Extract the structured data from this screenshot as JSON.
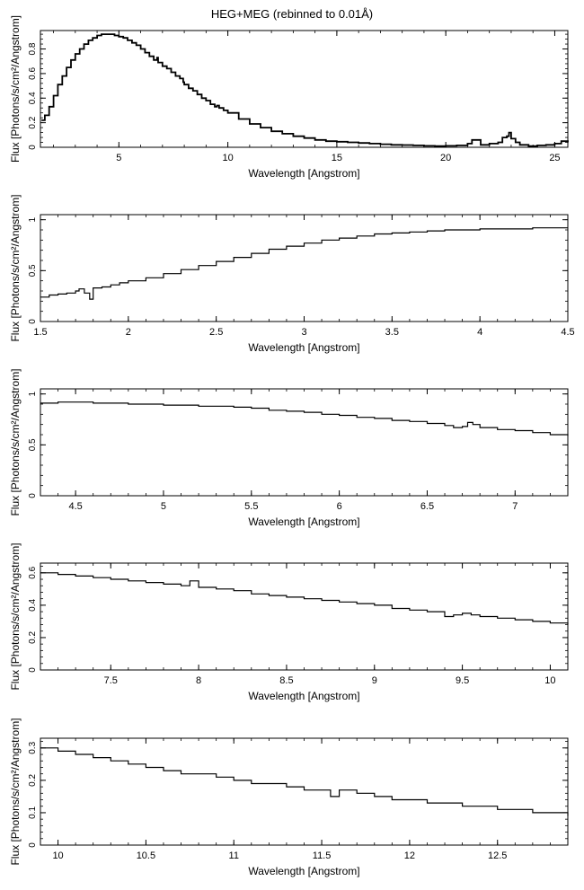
{
  "figure_title": "HEG+MEG (rebinned to 0.01Å)",
  "chart_data": [
    {
      "type": "line",
      "xlabel": "Wavelength [Angstrom]",
      "ylabel": "Flux [Photons/s/cm²/Angstrom]",
      "xlim": [
        1.4,
        25.6
      ],
      "ylim": [
        0,
        0.95
      ],
      "xticks": [
        5,
        10,
        15,
        20,
        25
      ],
      "yticks": [
        0,
        0.2,
        0.4,
        0.6,
        0.8
      ],
      "ytick_labels": [
        "0",
        "0.2",
        "0.4",
        "0.6",
        "0.8"
      ],
      "series": [
        {
          "x": [
            1.45,
            1.6,
            1.8,
            2.0,
            2.2,
            2.4,
            2.6,
            2.8,
            3.0,
            3.2,
            3.4,
            3.6,
            3.8,
            4.0,
            4.2,
            4.4,
            4.6,
            4.8,
            5.0,
            5.2,
            5.4,
            5.6,
            5.8,
            6.0,
            6.2,
            6.4,
            6.6,
            6.7,
            6.75,
            6.8,
            7.0,
            7.2,
            7.4,
            7.6,
            7.8,
            7.95,
            8.0,
            8.2,
            8.4,
            8.6,
            8.8,
            9.0,
            9.2,
            9.4,
            9.5,
            9.6,
            9.8,
            10.0,
            10.5,
            11.0,
            11.5,
            12.0,
            12.5,
            13.0,
            13.5,
            14.0,
            14.5,
            15.0,
            15.5,
            16.0,
            16.5,
            17.0,
            17.5,
            18.0,
            18.5,
            19.0,
            19.5,
            20.0,
            20.5,
            21.0,
            21.2,
            21.6,
            22.0,
            22.4,
            22.6,
            22.8,
            22.9,
            23.0,
            23.2,
            23.4,
            23.8,
            24.2,
            24.6,
            25.0,
            25.3,
            25.6
          ],
          "y": [
            0.22,
            0.26,
            0.33,
            0.42,
            0.51,
            0.58,
            0.65,
            0.71,
            0.76,
            0.8,
            0.84,
            0.87,
            0.89,
            0.91,
            0.92,
            0.92,
            0.92,
            0.91,
            0.9,
            0.89,
            0.87,
            0.85,
            0.83,
            0.8,
            0.77,
            0.74,
            0.71,
            0.71,
            0.73,
            0.69,
            0.66,
            0.64,
            0.61,
            0.58,
            0.56,
            0.53,
            0.51,
            0.48,
            0.46,
            0.43,
            0.4,
            0.38,
            0.35,
            0.33,
            0.34,
            0.32,
            0.3,
            0.28,
            0.23,
            0.19,
            0.16,
            0.13,
            0.11,
            0.09,
            0.075,
            0.06,
            0.05,
            0.045,
            0.04,
            0.035,
            0.03,
            0.025,
            0.02,
            0.018,
            0.015,
            0.012,
            0.01,
            0.012,
            0.015,
            0.03,
            0.06,
            0.02,
            0.03,
            0.04,
            0.08,
            0.09,
            0.12,
            0.07,
            0.04,
            0.02,
            0.01,
            0.015,
            0.02,
            0.03,
            0.05,
            0.04
          ]
        }
      ]
    },
    {
      "type": "line",
      "xlabel": "Wavelength [Angstrom]",
      "ylabel": "Flux [Photons/s/cm²/Angstrom]",
      "xlim": [
        1.5,
        4.5
      ],
      "ylim": [
        0,
        1.05
      ],
      "xticks": [
        1.5,
        2,
        2.5,
        3,
        3.5,
        4,
        4.5
      ],
      "xtick_labels": [
        "1.5",
        "2",
        "2.5",
        "3",
        "3.5",
        "4",
        "4.5"
      ],
      "yticks": [
        0,
        0.5,
        1
      ],
      "ytick_labels": [
        "0",
        "0.5",
        "1"
      ],
      "series": [
        {
          "x": [
            1.5,
            1.55,
            1.6,
            1.65,
            1.7,
            1.72,
            1.75,
            1.78,
            1.8,
            1.85,
            1.9,
            1.95,
            2.0,
            2.1,
            2.2,
            2.3,
            2.4,
            2.5,
            2.6,
            2.7,
            2.8,
            2.9,
            3.0,
            3.1,
            3.2,
            3.3,
            3.4,
            3.5,
            3.6,
            3.7,
            3.8,
            3.9,
            4.0,
            4.1,
            4.2,
            4.3,
            4.4,
            4.5
          ],
          "y": [
            0.24,
            0.26,
            0.27,
            0.28,
            0.3,
            0.32,
            0.28,
            0.22,
            0.33,
            0.34,
            0.36,
            0.38,
            0.4,
            0.43,
            0.47,
            0.51,
            0.55,
            0.59,
            0.63,
            0.67,
            0.71,
            0.74,
            0.77,
            0.8,
            0.82,
            0.84,
            0.86,
            0.87,
            0.88,
            0.89,
            0.9,
            0.9,
            0.91,
            0.91,
            0.91,
            0.92,
            0.92,
            0.92
          ]
        }
      ]
    },
    {
      "type": "line",
      "xlabel": "Wavelength [Angstrom]",
      "ylabel": "Flux [Photons/s/cm²/Angstrom]",
      "xlim": [
        4.3,
        7.3
      ],
      "ylim": [
        0,
        1.05
      ],
      "xticks": [
        4.5,
        5,
        5.5,
        6,
        6.5,
        7
      ],
      "xtick_labels": [
        "4.5",
        "5",
        "5.5",
        "6",
        "6.5",
        "7"
      ],
      "yticks": [
        0,
        0.5,
        1
      ],
      "ytick_labels": [
        "0",
        "0.5",
        "1"
      ],
      "series": [
        {
          "x": [
            4.3,
            4.4,
            4.5,
            4.6,
            4.7,
            4.8,
            4.9,
            5.0,
            5.1,
            5.2,
            5.3,
            5.4,
            5.5,
            5.6,
            5.7,
            5.8,
            5.9,
            6.0,
            6.1,
            6.2,
            6.3,
            6.4,
            6.5,
            6.6,
            6.65,
            6.7,
            6.73,
            6.76,
            6.8,
            6.9,
            7.0,
            7.1,
            7.2,
            7.3
          ],
          "y": [
            0.91,
            0.92,
            0.92,
            0.91,
            0.91,
            0.9,
            0.9,
            0.89,
            0.89,
            0.88,
            0.88,
            0.87,
            0.86,
            0.84,
            0.83,
            0.82,
            0.8,
            0.79,
            0.77,
            0.76,
            0.74,
            0.73,
            0.71,
            0.69,
            0.67,
            0.68,
            0.72,
            0.7,
            0.67,
            0.65,
            0.64,
            0.62,
            0.6,
            0.59
          ]
        }
      ]
    },
    {
      "type": "line",
      "xlabel": "Wavelength [Angstrom]",
      "ylabel": "Flux [Photons/s/cm²/Angstrom]",
      "xlim": [
        7.1,
        10.1
      ],
      "ylim": [
        0,
        0.66
      ],
      "xticks": [
        7.5,
        8,
        8.5,
        9,
        9.5,
        10
      ],
      "xtick_labels": [
        "7.5",
        "8",
        "8.5",
        "9",
        "9.5",
        "10"
      ],
      "yticks": [
        0,
        0.2,
        0.4,
        0.6
      ],
      "ytick_labels": [
        "0",
        "0.2",
        "0.4",
        "0.6"
      ],
      "series": [
        {
          "x": [
            7.1,
            7.2,
            7.3,
            7.4,
            7.5,
            7.6,
            7.7,
            7.8,
            7.9,
            7.95,
            8.0,
            8.1,
            8.2,
            8.3,
            8.4,
            8.5,
            8.6,
            8.7,
            8.8,
            8.9,
            9.0,
            9.1,
            9.2,
            9.3,
            9.4,
            9.45,
            9.5,
            9.55,
            9.6,
            9.7,
            9.8,
            9.9,
            10.0,
            10.1
          ],
          "y": [
            0.6,
            0.59,
            0.58,
            0.57,
            0.56,
            0.55,
            0.54,
            0.53,
            0.52,
            0.55,
            0.51,
            0.5,
            0.49,
            0.47,
            0.46,
            0.45,
            0.44,
            0.43,
            0.42,
            0.41,
            0.4,
            0.38,
            0.37,
            0.36,
            0.33,
            0.34,
            0.35,
            0.34,
            0.33,
            0.32,
            0.31,
            0.3,
            0.29,
            0.28
          ]
        }
      ]
    },
    {
      "type": "line",
      "xlabel": "Wavelength [Angstrom]",
      "ylabel": "Flux [Photons/s/cm²/Angstrom]",
      "xlim": [
        9.9,
        12.9
      ],
      "ylim": [
        0,
        0.33
      ],
      "xticks": [
        10,
        10.5,
        11,
        11.5,
        12,
        12.5
      ],
      "xtick_labels": [
        "10",
        "10.5",
        "11",
        "11.5",
        "12",
        "12.5"
      ],
      "yticks": [
        0,
        0.1,
        0.2,
        0.3
      ],
      "ytick_labels": [
        "0",
        "0.1",
        "0.2",
        "0.3"
      ],
      "series": [
        {
          "x": [
            9.9,
            10.0,
            10.1,
            10.2,
            10.3,
            10.4,
            10.5,
            10.6,
            10.7,
            10.8,
            10.9,
            11.0,
            11.1,
            11.2,
            11.3,
            11.4,
            11.5,
            11.55,
            11.6,
            11.7,
            11.8,
            11.9,
            12.0,
            12.1,
            12.2,
            12.3,
            12.4,
            12.5,
            12.6,
            12.7,
            12.8,
            12.9
          ],
          "y": [
            0.3,
            0.29,
            0.28,
            0.27,
            0.26,
            0.25,
            0.24,
            0.23,
            0.22,
            0.22,
            0.21,
            0.2,
            0.19,
            0.19,
            0.18,
            0.17,
            0.17,
            0.15,
            0.17,
            0.16,
            0.15,
            0.14,
            0.14,
            0.13,
            0.13,
            0.12,
            0.12,
            0.11,
            0.11,
            0.1,
            0.1,
            0.09
          ]
        }
      ]
    }
  ]
}
